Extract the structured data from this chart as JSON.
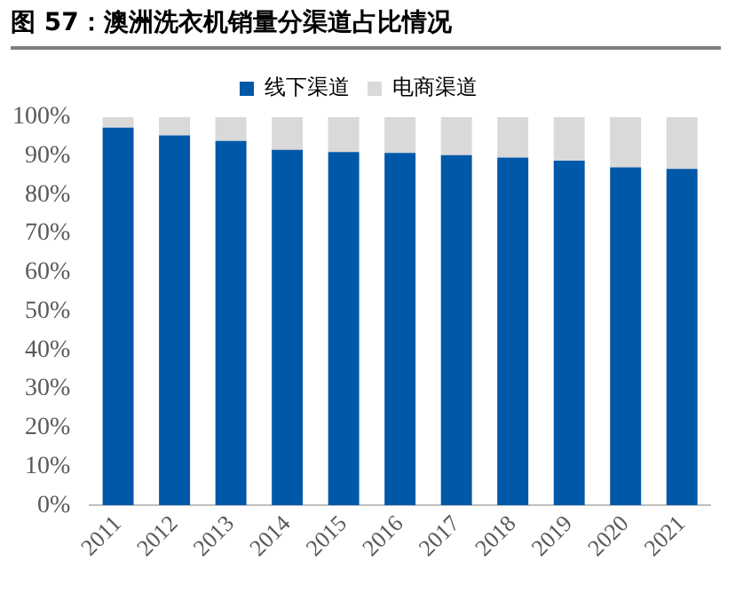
{
  "chart_data": {
    "type": "bar",
    "title": "图 57：澳洲洗衣机销量分渠道占比情况",
    "stacked": true,
    "categories": [
      "2011",
      "2012",
      "2013",
      "2014",
      "2015",
      "2016",
      "2017",
      "2018",
      "2019",
      "2020",
      "2021"
    ],
    "series": [
      {
        "name": "线下渠道",
        "color": "#0058a8",
        "values": [
          97.3,
          95.3,
          93.9,
          91.6,
          91,
          90.8,
          90.2,
          89.6,
          88.8,
          87.1,
          86.7
        ]
      },
      {
        "name": "电商渠道",
        "color": "#d9d9d9",
        "values": [
          2.7,
          4.7,
          6.1,
          8.4,
          9,
          9.2,
          9.8,
          10.4,
          11.2,
          12.9,
          13.3
        ]
      }
    ],
    "ylim": [
      0,
      100
    ],
    "yticks": [
      {
        "value": 0,
        "label": "0%"
      },
      {
        "value": 10,
        "label": "10%"
      },
      {
        "value": 20,
        "label": "20%"
      },
      {
        "value": 30,
        "label": "30%"
      },
      {
        "value": 40,
        "label": "40%"
      },
      {
        "value": 50,
        "label": "50%"
      },
      {
        "value": 60,
        "label": "60%"
      },
      {
        "value": 70,
        "label": "70%"
      },
      {
        "value": 80,
        "label": "80%"
      },
      {
        "value": 90,
        "label": "90%"
      },
      {
        "value": 100,
        "label": "100%"
      }
    ],
    "grid": false,
    "legend": "top"
  }
}
